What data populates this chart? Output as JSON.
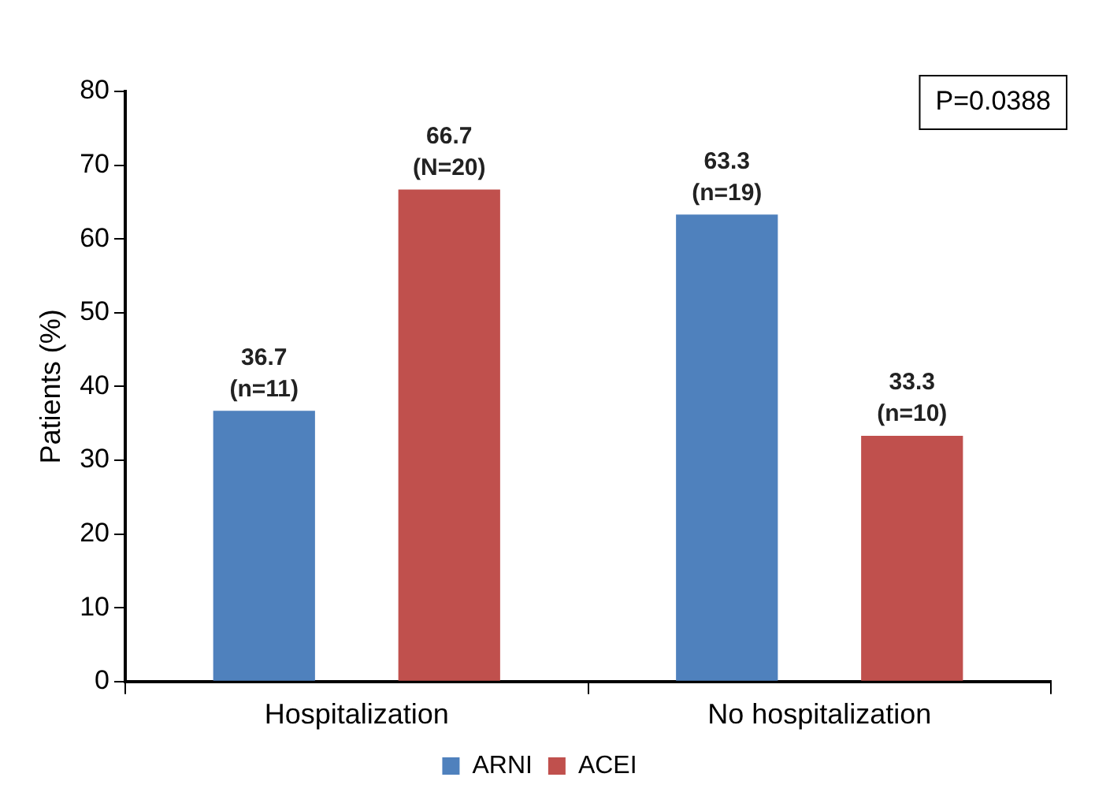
{
  "chart_data": {
    "type": "bar",
    "ylabel": "Patients (%)",
    "categories": [
      "Hospitalization",
      "No hospitalization"
    ],
    "series": [
      {
        "name": "ARNI",
        "color": "#4f81bd",
        "values": [
          36.7,
          63.3
        ],
        "value_labels": [
          "36.7\n(n=11)",
          "63.3\n(n=19)"
        ]
      },
      {
        "name": "ACEI",
        "color": "#c0504d",
        "values": [
          66.7,
          33.3
        ],
        "value_labels": [
          "66.7\n(N=20)",
          "33.3\n(n=10)"
        ]
      }
    ],
    "ylim": [
      0,
      80
    ],
    "yticks": [
      0,
      10,
      20,
      30,
      40,
      50,
      60,
      70,
      80
    ],
    "legend": "bottom",
    "annotations": [
      "P=0.0388"
    ]
  }
}
